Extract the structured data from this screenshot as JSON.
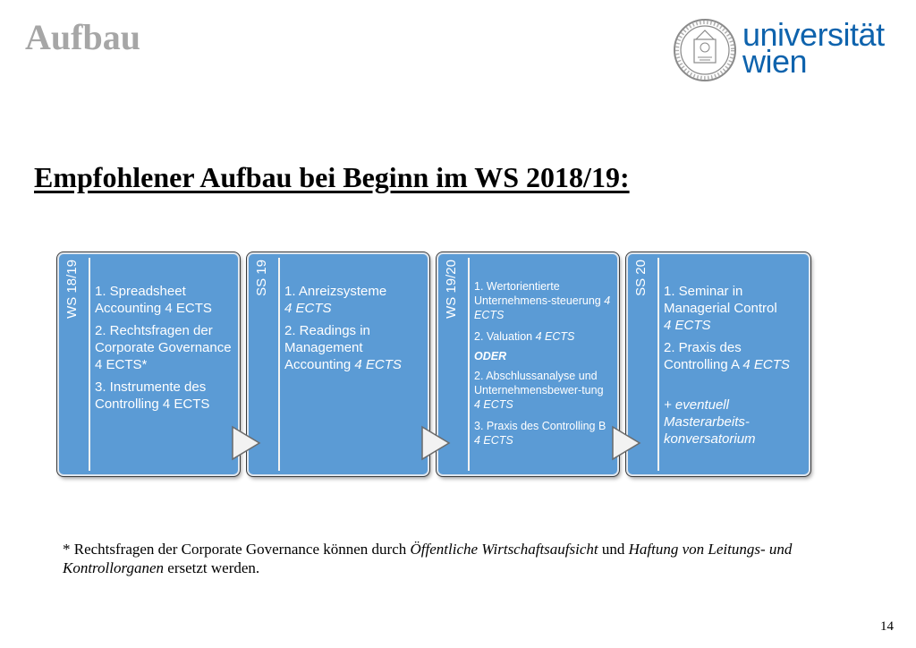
{
  "slide": {
    "title": "Aufbau",
    "heading": "Empfohlener Aufbau bei Beginn im WS 2018/19:",
    "page_number": "14"
  },
  "logo": {
    "line1": "universität",
    "line2": "wien"
  },
  "semesters": [
    {
      "label": "WS 18/19",
      "items": [
        {
          "text": "1. Spreadsheet Accounting 4 ECTS"
        },
        {
          "text": "2. Rechtsfragen der Corporate Governance 4 ECTS*"
        },
        {
          "text": "3. Instrumente des Controlling 4 ECTS"
        }
      ]
    },
    {
      "label": "SS 19",
      "items": [
        {
          "text": "1. Anreizsysteme",
          "ects": "4 ECTS"
        },
        {
          "text": "2. Readings in Management Accounting",
          "ects": "4 ECTS"
        }
      ]
    },
    {
      "label": "WS 19/20",
      "items": [
        {
          "text": "1. Wertorientierte Unternehmens-steuerung",
          "ects": "4 ECTS"
        },
        {
          "text": "2. Valuation",
          "ects": "4 ECTS"
        },
        {
          "text": "ODER"
        },
        {
          "text": "2. Abschlussanalyse und Unternehmensbewer-tung",
          "ects": "4 ECTS"
        },
        {
          "text": "3. Praxis des Controlling B",
          "ects": "4 ECTS"
        }
      ]
    },
    {
      "label": "SS 20",
      "items": [
        {
          "text": "1. Seminar in Managerial Control",
          "ects": "4 ECTS"
        },
        {
          "text": "2. Praxis des Controlling A",
          "ects": "4 ECTS"
        },
        {
          "text": "+ eventuell Masterarbeits-konversatorium"
        }
      ]
    }
  ],
  "footnote": {
    "part1": "* Rechtsfragen der Corporate Governance können durch ",
    "italic1": "Öffentliche Wirtschaftsaufsicht",
    "part2": " und ",
    "italic2": "Haftung von Leitungs- und Kontrollorganen",
    "part3": " ersetzt werden."
  }
}
